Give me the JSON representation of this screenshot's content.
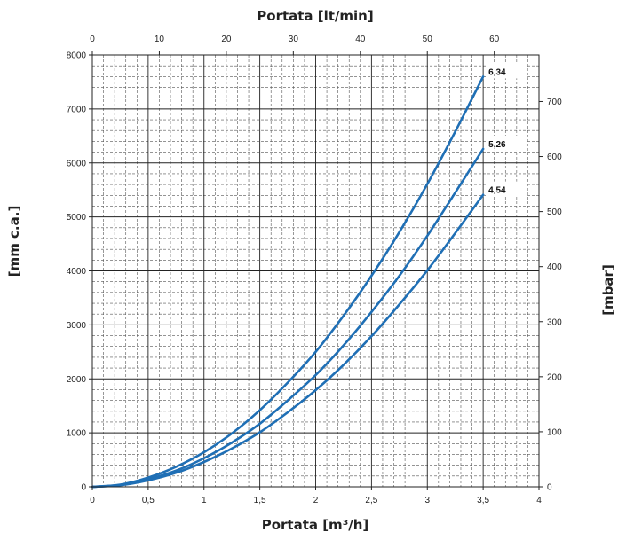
{
  "chart_data": {
    "type": "line",
    "xlabel": "Portata [m³/h]",
    "x2label": "Portata [lt/min]",
    "ylabel": "[mm c.a.]",
    "y2label": "[mbar]",
    "xlim": [
      0,
      4
    ],
    "x2lim": [
      0,
      66.67
    ],
    "ylim": [
      0,
      8000
    ],
    "y2lim": [
      0,
      784.5
    ],
    "x_ticks": [
      "0",
      "0,5",
      "1",
      "1,5",
      "2",
      "2,5",
      "3",
      "3,5",
      "4"
    ],
    "x2_ticks": [
      "0",
      "10",
      "20",
      "30",
      "40",
      "50",
      "60"
    ],
    "y_ticks": [
      "0",
      "1000",
      "2000",
      "3000",
      "4000",
      "5000",
      "6000",
      "7000",
      "8000"
    ],
    "y2_ticks": [
      "0",
      "100",
      "200",
      "300",
      "400",
      "500",
      "600",
      "700"
    ],
    "grid": true,
    "x": [
      0,
      0.25,
      0.5,
      0.75,
      1,
      1.25,
      1.5,
      1.75,
      2,
      2.25,
      2.5,
      2.75,
      3,
      3.25,
      3.5
    ],
    "series": [
      {
        "name": "6,34",
        "color": "#1f6fb5",
        "values": [
          0,
          40,
          170,
          370,
          640,
          990,
          1420,
          1930,
          2500,
          3170,
          3910,
          4720,
          5610,
          6580,
          7600
        ]
      },
      {
        "name": "5,26",
        "color": "#1f6fb5",
        "values": [
          0,
          35,
          140,
          300,
          530,
          820,
          1170,
          1600,
          2070,
          2620,
          3240,
          3910,
          4650,
          5450,
          6260
        ]
      },
      {
        "name": "4,54",
        "color": "#1f6fb5",
        "values": [
          0,
          30,
          120,
          260,
          460,
          710,
          1010,
          1380,
          1790,
          2260,
          2790,
          3380,
          4010,
          4700,
          5410
        ]
      }
    ]
  }
}
